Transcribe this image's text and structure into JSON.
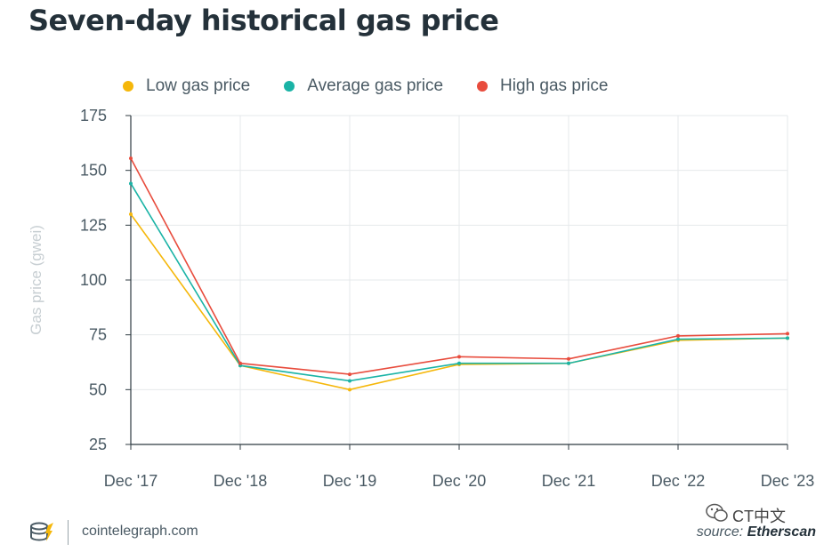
{
  "chart_data": {
    "type": "line",
    "title": "Seven-day historical gas price",
    "xlabel": "",
    "ylabel": "Gas price (gwei)",
    "categories": [
      "Dec '17",
      "Dec '18",
      "Dec '19",
      "Dec '20",
      "Dec '21",
      "Dec '22",
      "Dec '23"
    ],
    "ylim": [
      25,
      175
    ],
    "yticks": [
      25,
      50,
      75,
      100,
      125,
      150,
      175
    ],
    "grid": true,
    "legend_position": "top-left",
    "series": [
      {
        "name": "Low gas price",
        "color": "#f5b70a",
        "values": [
          130,
          61,
          50,
          61.5,
          62,
          72.5,
          73.5
        ]
      },
      {
        "name": "Average gas price",
        "color": "#1ab3a6",
        "values": [
          144,
          61,
          54,
          62,
          62,
          73,
          73.5
        ]
      },
      {
        "name": "High gas price",
        "color": "#e84c3d",
        "values": [
          155.5,
          62,
          57,
          65,
          64,
          74.5,
          75.5
        ]
      }
    ]
  },
  "footer": {
    "site": "cointelegraph.com",
    "source_prefix": "source:",
    "source_name": "Etherscan",
    "watermark": "CT中文"
  }
}
